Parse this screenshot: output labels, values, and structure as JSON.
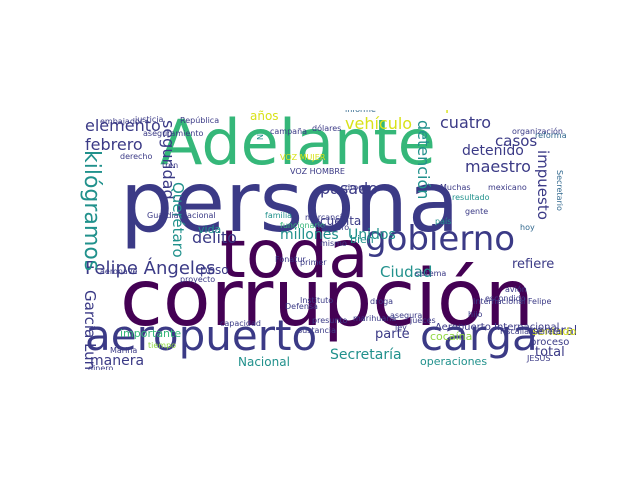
{
  "palette": {
    "dark_purple": "#440154",
    "indigo": "#3b3a86",
    "slate": "#31688e",
    "teal": "#21918c",
    "green": "#35b779",
    "yellow_green": "#90d743",
    "yellow": "#d8e219"
  },
  "words": [
    "corrupción",
    "persona",
    "toda",
    "Adelante",
    "carga",
    "aeropuerto",
    "gobierno",
    "Felipe Ángeles",
    "elemento",
    "cuatro",
    "vehículo",
    "periodo",
    "febrero",
    "años",
    "delito",
    "millones",
    "Unidos",
    "seguridad",
    "kilógramos",
    "detención",
    "maestro",
    "impuesto",
    "casos",
    "detenido",
    "Querétaro",
    "García Luna",
    "Ciudad",
    "refiere",
    "general",
    "manera",
    "parte",
    "Secretaría",
    "total",
    "Nacional",
    "peso",
    "cuenta",
    "importante",
    "bien",
    "vida",
    "operaciones",
    "cocaína",
    "sentado",
    "proceso",
    "Aeropuerto Internacional",
    "informe",
    "República",
    "justicia",
    "embajador",
    "campaña",
    "dólares",
    "Fonatur",
    "funcionario",
    "VOZ MUJER",
    "VOZ HOMBRE",
    "droga",
    "Muchas",
    "mexicano",
    "pasajero",
    "mercancía",
    "familia",
    "Marina",
    "Guardia Nacional",
    "Defensa",
    "sustancia",
    "capacidad",
    "presunto",
    "jueces",
    "asegura",
    "droga",
    "Instituto",
    "Federal",
    "dinero",
    "falta",
    "llegar",
    "sistema",
    "proyecto",
    "tiempo",
    "aeronave",
    "gente",
    "hoy",
    "Internacional Felipe",
    "resultado",
    "país",
    "mismo",
    "hijo",
    "primer",
    "avión",
    "ley",
    "marihuana",
    "aseguramiento",
    "organización",
    "reforma",
    "Secretario",
    "Fiscalía General",
    "escondido",
    "derecho",
    "tren",
    "pasado",
    "JESÚS",
    "N",
    "Tijuana",
    "Chihuahua"
  ]
}
